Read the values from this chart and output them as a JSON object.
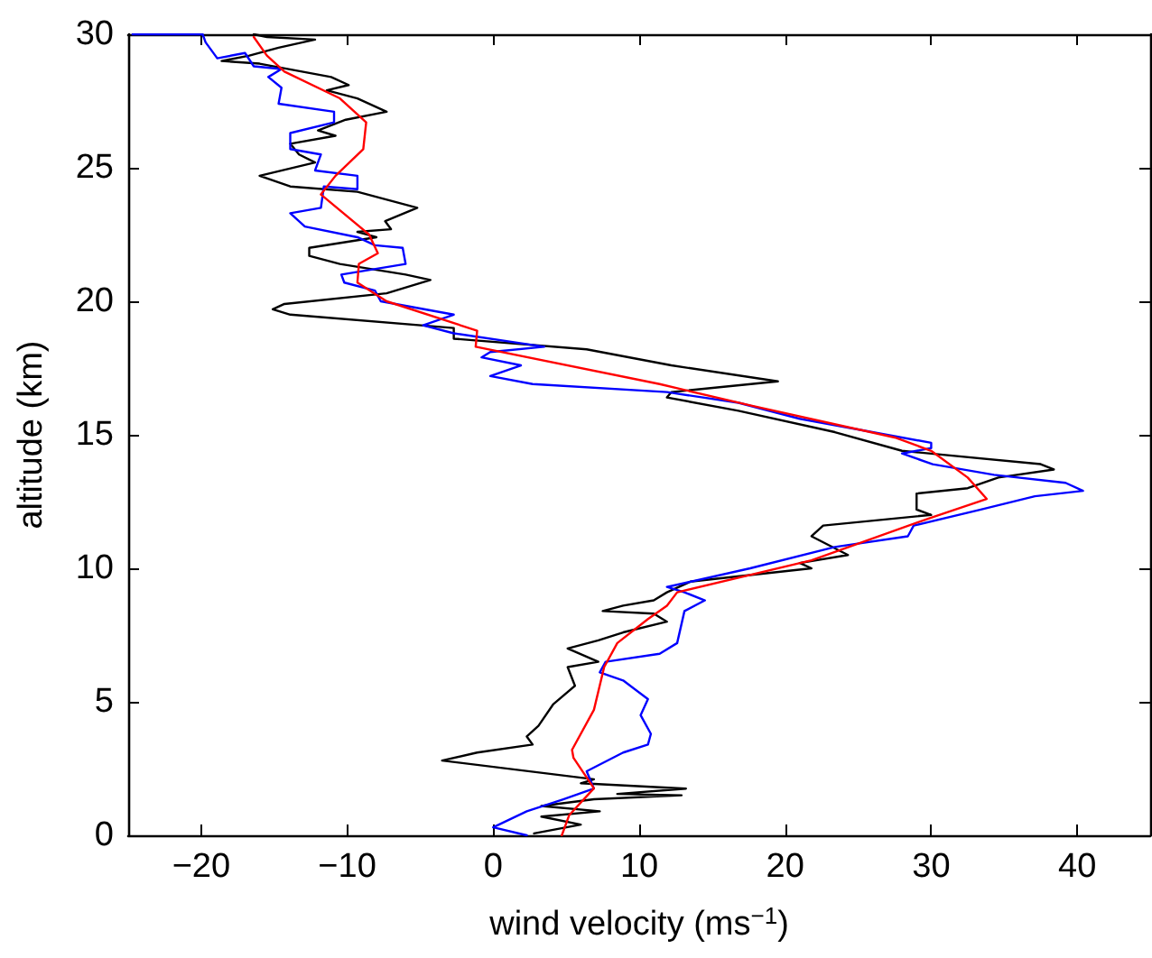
{
  "chart_data": {
    "type": "line",
    "xlabel": "wind velocity (ms$^{−1}$)",
    "ylabel": "altitude (km)",
    "xlim": [
      -25,
      45
    ],
    "xticks": [
      {
        "value": -20,
        "label": "−20"
      },
      {
        "value": -10,
        "label": "−10"
      },
      0,
      10,
      20,
      30,
      40
    ],
    "ylim": [
      0,
      30
    ],
    "yticks": [
      0,
      5,
      10,
      15,
      20,
      25,
      30
    ],
    "grid": false,
    "marker": "none",
    "line_style": "solid",
    "series": [
      {
        "color": "#000000",
        "x": [
          2.8,
          6.0,
          3.3,
          7.3,
          3.3,
          6.9,
          12.9,
          8.5,
          13.2,
          6.0,
          6.9,
          -3.5,
          -1.1,
          2.7,
          2.3,
          3.1,
          4.1,
          5.6,
          5.1,
          7.2,
          5.1,
          7.2,
          8.9,
          11.9,
          11.0,
          7.5,
          8.9,
          11.0,
          11.9,
          13.5,
          21.8,
          21.0,
          24.3,
          21.8,
          22.6,
          30.0,
          29.0,
          29.0,
          32.5,
          34.6,
          38.4,
          37.5,
          28.0,
          23.4,
          16.8,
          11.9,
          12.2,
          19.5,
          12.2,
          6.4,
          -2.7,
          -2.7,
          -13.9,
          -15.1,
          -14.3,
          -7.3,
          -4.3,
          -6.0,
          -10.5,
          -12.6,
          -12.6,
          -8.0,
          -9.3,
          -7.0,
          -7.4,
          -5.2,
          -9.3,
          -13.9,
          -16.0,
          -12.2,
          -13.3,
          -13.9,
          -10.8,
          -12.0,
          -10.1,
          -7.3,
          -9.3,
          -11.4,
          -9.9,
          -11.1,
          -16.0,
          -18.6,
          -16.7,
          -14.7,
          -12.2,
          -15.5,
          -16.4
        ],
        "values": [
          0.07,
          0.4,
          0.7,
          0.9,
          1.1,
          1.35,
          1.5,
          1.55,
          1.75,
          1.95,
          2.1,
          2.8,
          3.1,
          3.4,
          3.7,
          4.1,
          4.9,
          5.6,
          6.3,
          6.5,
          7.0,
          7.3,
          7.6,
          8.0,
          8.3,
          8.4,
          8.6,
          8.8,
          9.1,
          9.5,
          10.0,
          10.2,
          10.5,
          11.2,
          11.6,
          12.0,
          12.2,
          12.8,
          13.0,
          13.4,
          13.7,
          13.9,
          14.4,
          15.1,
          15.9,
          16.4,
          16.6,
          17.0,
          17.6,
          18.2,
          18.6,
          19.0,
          19.5,
          19.7,
          19.9,
          20.3,
          20.8,
          21.0,
          21.4,
          21.7,
          22.0,
          22.4,
          22.6,
          22.7,
          23.0,
          23.5,
          24.1,
          24.3,
          24.7,
          25.2,
          25.5,
          25.9,
          26.2,
          26.4,
          26.8,
          27.1,
          27.6,
          27.9,
          28.1,
          28.4,
          28.9,
          29.0,
          29.2,
          29.5,
          29.8,
          29.9,
          30.0
        ]
      },
      {
        "color": "#0000ff",
        "x": [
          2.3,
          0.0,
          2.3,
          4.8,
          6.9,
          6.4,
          8.9,
          10.6,
          10.8,
          10.1,
          10.6,
          8.9,
          7.3,
          7.7,
          11.4,
          12.6,
          13.1,
          14.5,
          13.1,
          11.9,
          17.6,
          23.4,
          28.4,
          28.8,
          33.4,
          37.1,
          40.4,
          39.2,
          34.3,
          30.1,
          28.0,
          30.0,
          30.0,
          21.0,
          16.8,
          11.9,
          2.7,
          -0.2,
          1.9,
          -0.8,
          -0.2,
          3.5,
          -2.7,
          -4.8,
          -2.7,
          -7.7,
          -8.1,
          -10.2,
          -10.4,
          -6.0,
          -6.2,
          -8.1,
          -9.3,
          -12.9,
          -13.9,
          -11.8,
          -11.6,
          -9.3,
          -9.3,
          -12.2,
          -11.8,
          -13.9,
          -13.9,
          -10.9,
          -10.9,
          -14.7,
          -14.5,
          -15.4,
          -14.5,
          -16.4,
          -17.0,
          -18.9,
          -19.7,
          -19.9,
          -24.7
        ],
        "values": [
          0.0,
          0.3,
          0.9,
          1.35,
          1.75,
          2.4,
          3.1,
          3.4,
          3.8,
          4.5,
          5.1,
          5.8,
          6.1,
          6.5,
          6.8,
          7.2,
          8.4,
          8.8,
          9.1,
          9.3,
          10.0,
          10.8,
          11.2,
          11.6,
          12.2,
          12.7,
          12.9,
          13.2,
          13.5,
          13.9,
          14.3,
          14.5,
          14.7,
          15.6,
          16.2,
          16.6,
          16.9,
          17.2,
          17.6,
          17.9,
          18.1,
          18.3,
          18.8,
          19.1,
          19.5,
          20.0,
          20.4,
          20.7,
          21.0,
          21.4,
          22.0,
          22.1,
          22.4,
          22.8,
          23.3,
          23.5,
          24.3,
          24.2,
          24.7,
          24.9,
          25.5,
          25.7,
          26.3,
          26.7,
          27.1,
          27.4,
          28.0,
          28.4,
          28.7,
          28.8,
          29.3,
          29.1,
          29.7,
          30.0,
          30.0
        ]
      },
      {
        "color": "#ff0000",
        "x": [
          4.7,
          5.2,
          6.9,
          5.5,
          5.4,
          6.9,
          7.6,
          8.5,
          10.6,
          11.9,
          12.6,
          21.8,
          30.0,
          33.8,
          32.5,
          30.0,
          27.5,
          17.6,
          11.4,
          -1.2,
          -1.1,
          -7.3,
          -9.3,
          -9.2,
          -7.9,
          -8.5,
          -11.8,
          -10.8,
          -8.9,
          -8.7,
          -10.5,
          -14.3,
          -15.5,
          -16.4
        ],
        "values": [
          0.0,
          0.75,
          1.76,
          2.9,
          3.2,
          4.7,
          6.3,
          7.2,
          8.1,
          8.6,
          9.1,
          10.3,
          11.9,
          12.6,
          13.4,
          14.4,
          14.9,
          16.1,
          16.9,
          18.3,
          18.9,
          20.0,
          20.7,
          21.4,
          21.8,
          22.5,
          24.0,
          24.7,
          25.7,
          26.7,
          27.6,
          28.6,
          29.2,
          29.9
        ]
      }
    ]
  }
}
